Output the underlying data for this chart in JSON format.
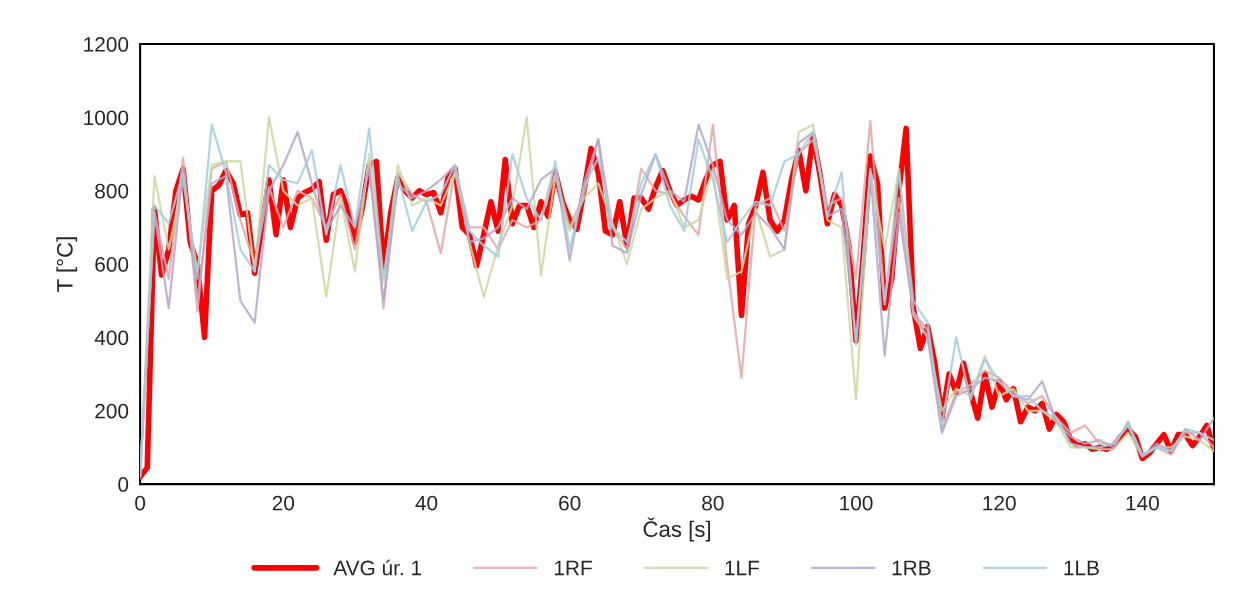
{
  "chart_data": {
    "type": "line",
    "xlabel": "Čas [s]",
    "ylabel": "T [°C]",
    "xlim": [
      0,
      150
    ],
    "xticks": [
      0,
      20,
      40,
      60,
      80,
      100,
      120,
      140
    ],
    "ylim": [
      0,
      1200
    ],
    "yticks": [
      0,
      200,
      400,
      600,
      800,
      1000,
      1200
    ],
    "grid": false,
    "legend": "bottom",
    "marker": "none",
    "line_style": "solid",
    "series": [
      {
        "name": "AVG úr. 1",
        "color": "#ff0000",
        "x": [
          0,
          1,
          2,
          3,
          4,
          5,
          6,
          7,
          8,
          9,
          10,
          11,
          12,
          13,
          14,
          15,
          16,
          17,
          18,
          19,
          20,
          21,
          22,
          23,
          24,
          25,
          26,
          27,
          28,
          29,
          30,
          31,
          32,
          33,
          34,
          35,
          36,
          37,
          38,
          39,
          40,
          41,
          42,
          43,
          44,
          45,
          46,
          47,
          48,
          49,
          50,
          51,
          52,
          53,
          54,
          55,
          56,
          57,
          58,
          59,
          60,
          61,
          62,
          63,
          64,
          65,
          66,
          67,
          68,
          69,
          70,
          71,
          72,
          73,
          74,
          75,
          76,
          77,
          78,
          79,
          80,
          81,
          82,
          83,
          84,
          85,
          86,
          87,
          88,
          89,
          90,
          91,
          92,
          93,
          94,
          95,
          96,
          97,
          98,
          99,
          100,
          101,
          102,
          103,
          104,
          105,
          106,
          107,
          108,
          109,
          110,
          111,
          112,
          113,
          114,
          115,
          116,
          117,
          118,
          119,
          120,
          121,
          122,
          123,
          124,
          125,
          126,
          127,
          128,
          129,
          130,
          131,
          132,
          133,
          134,
          135,
          136,
          137,
          138,
          139,
          140,
          141,
          142,
          143,
          144,
          145,
          146,
          147,
          148,
          149,
          150
        ],
        "values": [
          20,
          45,
          750,
          570,
          640,
          800,
          860,
          660,
          600,
          400,
          800,
          815,
          855,
          820,
          735,
          740,
          575,
          700,
          830,
          680,
          830,
          700,
          780,
          795,
          805,
          825,
          665,
          790,
          800,
          750,
          660,
          750,
          870,
          880,
          590,
          740,
          835,
          800,
          780,
          800,
          790,
          795,
          740,
          835,
          860,
          700,
          680,
          595,
          680,
          770,
          690,
          885,
          710,
          760,
          760,
          700,
          770,
          730,
          850,
          770,
          720,
          695,
          800,
          915,
          850,
          690,
          680,
          770,
          650,
          780,
          780,
          750,
          810,
          855,
          800,
          760,
          775,
          785,
          775,
          830,
          870,
          880,
          720,
          760,
          460,
          710,
          760,
          850,
          720,
          690,
          720,
          830,
          910,
          800,
          950,
          840,
          710,
          790,
          760,
          650,
          390,
          620,
          895,
          820,
          480,
          560,
          800,
          970,
          480,
          370,
          430,
          330,
          180,
          300,
          250,
          330,
          250,
          180,
          300,
          210,
          280,
          230,
          260,
          170,
          210,
          200,
          220,
          150,
          190,
          170,
          120,
          105,
          110,
          95,
          100,
          95,
          105,
          130,
          150,
          130,
          70,
          85,
          110,
          135,
          90,
          135,
          135,
          105,
          130,
          160,
          95
        ]
      },
      {
        "name": "1RF",
        "color": "#e6a6a6",
        "x": [
          0,
          2,
          4,
          6,
          8,
          10,
          12,
          14,
          16,
          18,
          20,
          22,
          24,
          26,
          28,
          30,
          32,
          34,
          36,
          38,
          40,
          42,
          44,
          46,
          48,
          50,
          52,
          54,
          56,
          58,
          60,
          62,
          64,
          66,
          68,
          70,
          72,
          74,
          76,
          78,
          80,
          82,
          84,
          86,
          88,
          90,
          92,
          94,
          96,
          98,
          100,
          102,
          104,
          106,
          108,
          110,
          112,
          114,
          116,
          118,
          120,
          122,
          124,
          126,
          128,
          130,
          132,
          134,
          136,
          138,
          140,
          142,
          144,
          146,
          148,
          150
        ],
        "values": [
          25,
          740,
          560,
          890,
          470,
          860,
          880,
          720,
          600,
          810,
          700,
          800,
          780,
          700,
          790,
          640,
          880,
          480,
          850,
          790,
          770,
          630,
          860,
          700,
          700,
          640,
          720,
          700,
          720,
          850,
          700,
          790,
          940,
          700,
          640,
          860,
          800,
          790,
          730,
          680,
          980,
          600,
          290,
          760,
          780,
          690,
          900,
          940,
          760,
          780,
          560,
          990,
          500,
          780,
          470,
          420,
          150,
          250,
          270,
          310,
          290,
          250,
          220,
          240,
          180,
          140,
          160,
          110,
          110,
          160,
          80,
          100,
          80,
          140,
          140,
          100
        ]
      },
      {
        "name": "1LF",
        "color": "#c9d9a0",
        "x": [
          0,
          2,
          4,
          6,
          8,
          10,
          12,
          14,
          16,
          18,
          20,
          22,
          24,
          26,
          28,
          30,
          32,
          34,
          36,
          38,
          40,
          42,
          44,
          46,
          48,
          50,
          52,
          54,
          56,
          58,
          60,
          62,
          64,
          66,
          68,
          70,
          72,
          74,
          76,
          78,
          80,
          82,
          84,
          86,
          88,
          90,
          92,
          94,
          96,
          98,
          100,
          102,
          104,
          106,
          108,
          110,
          112,
          114,
          116,
          118,
          120,
          122,
          124,
          126,
          128,
          130,
          132,
          134,
          136,
          138,
          140,
          142,
          144,
          146,
          148,
          150
        ],
        "values": [
          20,
          840,
          640,
          830,
          580,
          870,
          880,
          880,
          580,
          1000,
          800,
          760,
          780,
          510,
          780,
          580,
          900,
          550,
          870,
          760,
          780,
          760,
          850,
          660,
          510,
          650,
          760,
          1000,
          570,
          840,
          690,
          780,
          820,
          710,
          600,
          750,
          780,
          800,
          700,
          720,
          860,
          560,
          580,
          750,
          620,
          640,
          960,
          980,
          720,
          700,
          230,
          850,
          640,
          860,
          460,
          400,
          200,
          260,
          240,
          350,
          240,
          260,
          200,
          200,
          170,
          100,
          100,
          95,
          95,
          140,
          75,
          100,
          100,
          130,
          120,
          90
        ]
      },
      {
        "name": "1RB",
        "color": "#b4a7cc",
        "x": [
          0,
          2,
          4,
          6,
          8,
          10,
          12,
          14,
          16,
          18,
          20,
          22,
          24,
          26,
          28,
          30,
          32,
          34,
          36,
          38,
          40,
          42,
          44,
          46,
          48,
          50,
          52,
          54,
          56,
          58,
          60,
          62,
          64,
          66,
          68,
          70,
          72,
          74,
          76,
          78,
          80,
          82,
          84,
          86,
          88,
          90,
          92,
          94,
          96,
          98,
          100,
          102,
          104,
          106,
          108,
          110,
          112,
          114,
          116,
          118,
          120,
          122,
          124,
          126,
          128,
          130,
          132,
          134,
          136,
          138,
          140,
          142,
          144,
          146,
          148,
          150
        ],
        "values": [
          20,
          740,
          480,
          860,
          500,
          820,
          840,
          500,
          440,
          800,
          870,
          960,
          820,
          690,
          760,
          700,
          860,
          500,
          820,
          780,
          800,
          830,
          870,
          660,
          670,
          700,
          780,
          750,
          830,
          860,
          610,
          820,
          940,
          650,
          630,
          790,
          900,
          800,
          770,
          980,
          870,
          720,
          680,
          740,
          700,
          640,
          930,
          960,
          730,
          750,
          390,
          850,
          350,
          740,
          470,
          400,
          140,
          240,
          260,
          290,
          280,
          240,
          230,
          280,
          170,
          130,
          110,
          120,
          100,
          170,
          75,
          110,
          90,
          150,
          120,
          180
        ]
      },
      {
        "name": "1LB",
        "color": "#9ecfe0",
        "x": [
          0,
          2,
          4,
          6,
          8,
          10,
          12,
          14,
          16,
          18,
          20,
          22,
          24,
          26,
          28,
          30,
          32,
          34,
          36,
          38,
          40,
          42,
          44,
          46,
          48,
          50,
          52,
          54,
          56,
          58,
          60,
          62,
          64,
          66,
          68,
          70,
          72,
          74,
          76,
          78,
          80,
          82,
          84,
          86,
          88,
          90,
          92,
          94,
          96,
          98,
          100,
          102,
          104,
          106,
          108,
          110,
          112,
          114,
          116,
          118,
          120,
          122,
          124,
          126,
          128,
          130,
          132,
          134,
          136,
          138,
          140,
          142,
          144,
          146,
          148,
          150
        ],
        "values": [
          20,
          760,
          710,
          850,
          560,
          980,
          850,
          640,
          580,
          870,
          830,
          820,
          910,
          680,
          870,
          700,
          970,
          560,
          840,
          690,
          770,
          790,
          870,
          690,
          650,
          620,
          900,
          780,
          720,
          880,
          640,
          810,
          890,
          700,
          660,
          820,
          900,
          760,
          690,
          940,
          830,
          660,
          720,
          770,
          760,
          880,
          900,
          960,
          730,
          850,
          380,
          860,
          490,
          850,
          500,
          440,
          160,
          400,
          230,
          340,
          280,
          240,
          240,
          200,
          180,
          110,
          100,
          100,
          110,
          160,
          80,
          100,
          90,
          150,
          140,
          120
        ]
      }
    ]
  }
}
